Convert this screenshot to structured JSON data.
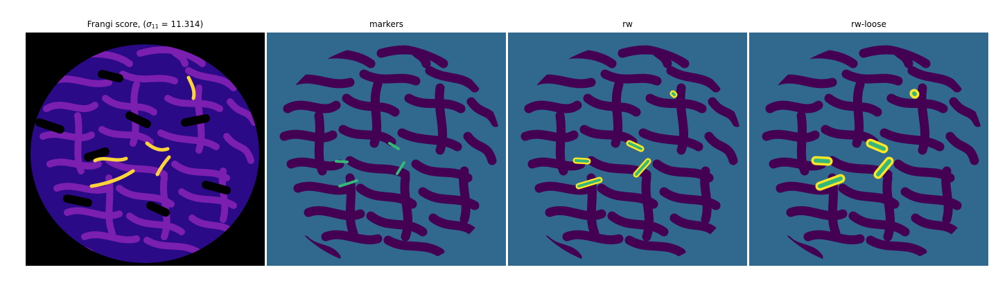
{
  "panels": [
    {
      "title_prefix": "Frangi score, (",
      "title_sigma": "σ",
      "title_sub": "11",
      "title_suffix": " = 11.314)"
    },
    {
      "title": "markers"
    },
    {
      "title": "rw"
    },
    {
      "title": "rw-loose"
    }
  ],
  "colors": {
    "background_dark": "#000000",
    "frangi_low": "#2a0a86",
    "frangi_mid": "#7a1fb0",
    "frangi_high": "#ffd43b",
    "label_background": "#30688e",
    "label_vessel": "#440154",
    "label_marker": "#35b779",
    "label_segment": "#fde725"
  }
}
